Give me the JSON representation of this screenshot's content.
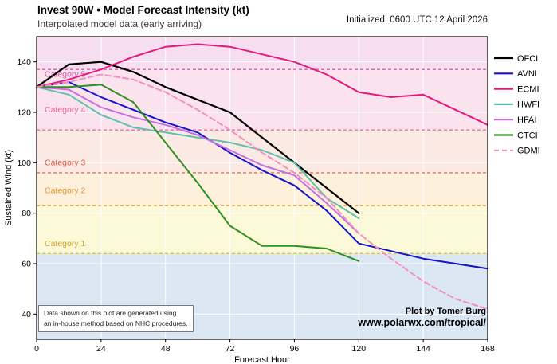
{
  "chart_data": {
    "type": "line",
    "title": "Invest 90W • Model Forecast Intensity (kt)",
    "subtitle": "Interpolated model data (early arriving)",
    "initialized": "Initialized: 0600 UTC 12 April 2026",
    "xlabel": "Forecast Hour",
    "ylabel": "Sustained Wind (kt)",
    "xlim": [
      0,
      168
    ],
    "ylim": [
      30,
      150
    ],
    "xticks": [
      0,
      24,
      48,
      72,
      96,
      120,
      144,
      168
    ],
    "yticks": [
      40,
      60,
      80,
      100,
      120,
      140
    ],
    "grid": true,
    "grid_color": "#ffffff",
    "legend_position": "upper right outside",
    "x": [
      0,
      12,
      24,
      36,
      48,
      60,
      72,
      84,
      96,
      108,
      120,
      132,
      144,
      156,
      168
    ],
    "series": [
      {
        "name": "OFCL",
        "color": "#000000",
        "width": 2.2,
        "dash": false,
        "values": [
          130,
          139,
          140,
          136,
          130,
          125,
          120,
          110,
          100,
          90,
          80,
          null,
          null,
          null,
          null
        ]
      },
      {
        "name": "AVNI",
        "color": "#1414cc",
        "width": 2,
        "dash": false,
        "values": [
          130,
          132,
          126,
          121,
          116,
          112,
          104,
          97,
          91,
          81,
          68,
          65,
          62,
          60,
          58
        ]
      },
      {
        "name": "ECMI",
        "color": "#e6187d",
        "width": 2,
        "dash": false,
        "values": [
          130,
          133,
          137,
          142,
          146,
          147,
          146,
          143,
          140,
          135,
          128,
          126,
          127,
          121,
          115
        ]
      },
      {
        "name": "HWFI",
        "color": "#5fc0ae",
        "width": 2,
        "dash": false,
        "values": [
          130,
          127,
          119,
          114,
          112,
          110,
          108,
          105,
          100,
          86,
          78,
          null,
          null,
          null,
          null
        ]
      },
      {
        "name": "HFAI",
        "color": "#c76fe0",
        "width": 2,
        "dash": false,
        "values": [
          130,
          129,
          122,
          118,
          115,
          111,
          105,
          99,
          95,
          84,
          72,
          null,
          null,
          null,
          null
        ]
      },
      {
        "name": "CTCI",
        "color": "#2f8f1f",
        "width": 2,
        "dash": false,
        "values": [
          130,
          130,
          131,
          124,
          108,
          92,
          75,
          67,
          67,
          66,
          61,
          null,
          null,
          null,
          null
        ]
      },
      {
        "name": "GDMI",
        "color": "#f48fc1",
        "width": 2,
        "dash": true,
        "values": [
          130,
          132,
          135,
          133,
          128,
          121,
          113,
          104,
          96,
          86,
          72,
          62,
          53,
          46,
          42
        ]
      }
    ],
    "bands": [
      {
        "label": "Category 5",
        "from": 137,
        "to": 150,
        "fill": "#f6def0",
        "line": "#e05ab8",
        "label_color": "#d94fae",
        "label_y": 134
      },
      {
        "label": "Category 4",
        "from": 113,
        "to": 137,
        "fill": "#fae3ed",
        "line": "#ef6a9e",
        "label_color": "#ee5f96",
        "label_y": 120
      },
      {
        "label": "Category 3",
        "from": 96,
        "to": 113,
        "fill": "#fbe9e4",
        "line": "#e06050",
        "label_color": "#dd5643",
        "label_y": 99
      },
      {
        "label": "Category 2",
        "from": 83,
        "to": 96,
        "fill": "#fdf1dc",
        "line": "#ea9c3e",
        "label_color": "#e2902c",
        "label_y": 88
      },
      {
        "label": "Category 1",
        "from": 64,
        "to": 83,
        "fill": "#fcf9d9",
        "line": "#ddc731",
        "label_color": "#cfa42b",
        "label_y": 67
      },
      {
        "label": "",
        "from": 30,
        "to": 64,
        "fill": "#dbe7f3",
        "line": null,
        "label_color": null,
        "label_y": null
      }
    ]
  },
  "note": {
    "line1": "Data shown on this plot are generated using",
    "line2": "an in-house method based on NHC procedures."
  },
  "credit": {
    "line1": "Plot by Tomer Burg",
    "line2": "www.polarwx.com/tropical/"
  }
}
